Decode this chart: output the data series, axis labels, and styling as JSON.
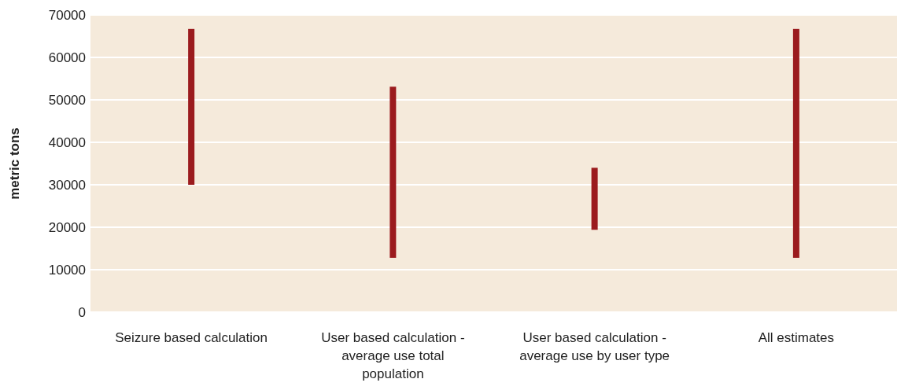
{
  "chart_data": {
    "type": "bar",
    "ylabel": "metric tons",
    "categories": [
      "Seizure based calculation",
      "User based calculation - average use total population",
      "User based calculation - average use by user type",
      "All estimates"
    ],
    "base": [
      30000,
      12800,
      19400,
      12800
    ],
    "values": [
      36700,
      40300,
      14600,
      53900
    ],
    "color": "#9b1b1e",
    "ylim": [
      0,
      70000
    ],
    "yticks": [
      0,
      10000,
      20000,
      30000,
      40000,
      50000,
      60000,
      70000
    ],
    "grid": "y"
  }
}
